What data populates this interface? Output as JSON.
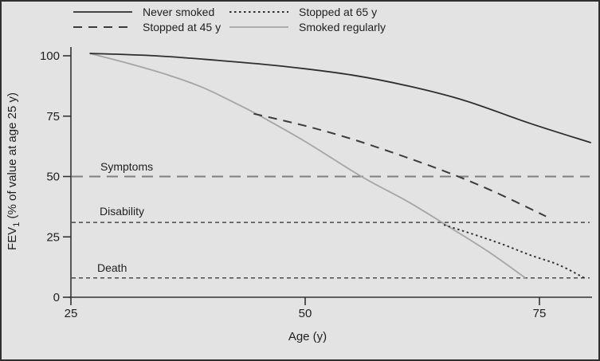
{
  "figure": {
    "background": "#e3e3e3",
    "border_color": "#2f2f2f",
    "text_color": "#1f1f1f"
  },
  "chart_data": {
    "type": "line",
    "title": "",
    "xlabel": "Age (y)",
    "ylabel": "FEV1 (% of value at age 25 y)",
    "ylabel_parts": {
      "prefix": "FEV",
      "sub": "1",
      "suffix": " (% of value at age 25 y)"
    },
    "xlim": [
      25,
      80.5
    ],
    "ylim": [
      0,
      100
    ],
    "x_ticks": [
      25,
      50,
      75
    ],
    "y_ticks": [
      100,
      75,
      50,
      25,
      0
    ],
    "grid": false,
    "legend_position": "top",
    "axis_color": "#333333",
    "series": [
      {
        "key": "smoked_regularly",
        "name": "Smoked regularly",
        "color": "#a5a5a5",
        "dash": "",
        "width": 1.8,
        "points": [
          [
            27,
            101
          ],
          [
            31,
            97
          ],
          [
            35,
            92.5
          ],
          [
            39,
            87
          ],
          [
            43,
            79.5
          ],
          [
            45,
            75.5
          ],
          [
            50,
            64.5
          ],
          [
            56,
            50
          ],
          [
            61,
            39.5
          ],
          [
            65,
            30
          ],
          [
            69.5,
            19
          ],
          [
            73.5,
            8
          ]
        ]
      },
      {
        "key": "never_smoked",
        "name": "Never smoked",
        "color": "#2e2e2e",
        "dash": "",
        "width": 1.8,
        "points": [
          [
            27,
            101
          ],
          [
            34,
            100
          ],
          [
            41,
            98
          ],
          [
            48,
            95.5
          ],
          [
            55,
            92
          ],
          [
            61,
            87.5
          ],
          [
            67,
            81.5
          ],
          [
            74,
            72
          ],
          [
            80.5,
            64
          ]
        ]
      },
      {
        "key": "stopped_45",
        "name": "Stopped at 45 y",
        "color": "#3c3c3c",
        "dash": "11,8",
        "width": 2,
        "points": [
          [
            44.5,
            76
          ],
          [
            50,
            71
          ],
          [
            55,
            65.5
          ],
          [
            60,
            59
          ],
          [
            65,
            52
          ],
          [
            70,
            44
          ],
          [
            75.7,
            33.5
          ]
        ]
      },
      {
        "key": "stopped_65",
        "name": "Stopped at 65 y",
        "color": "#2e2e2e",
        "dash": "2.5,3.5",
        "width": 1.9,
        "points": [
          [
            64.8,
            30
          ],
          [
            68,
            26
          ],
          [
            71,
            22
          ],
          [
            74,
            17.5
          ],
          [
            77,
            13.5
          ],
          [
            79.8,
            8
          ]
        ]
      }
    ],
    "reference_lines": [
      {
        "label": "Symptoms",
        "value": 50,
        "color": "#7f7f7f",
        "dash": "14,8",
        "width": 2
      },
      {
        "label": "Disability",
        "value": 31,
        "color": "#4a4a4a",
        "dash": "5,4",
        "width": 1.5
      },
      {
        "label": "Death",
        "value": 8,
        "color": "#4a4a4a",
        "dash": "5,4",
        "width": 1.5
      }
    ]
  },
  "legend": {
    "items": [
      {
        "label": "Never smoked",
        "series": "never_smoked"
      },
      {
        "label": "Stopped at 65 y",
        "series": "stopped_65"
      },
      {
        "label": "Stopped at 45 y",
        "series": "stopped_45"
      },
      {
        "label": "Smoked regularly",
        "series": "smoked_regularly"
      }
    ]
  }
}
